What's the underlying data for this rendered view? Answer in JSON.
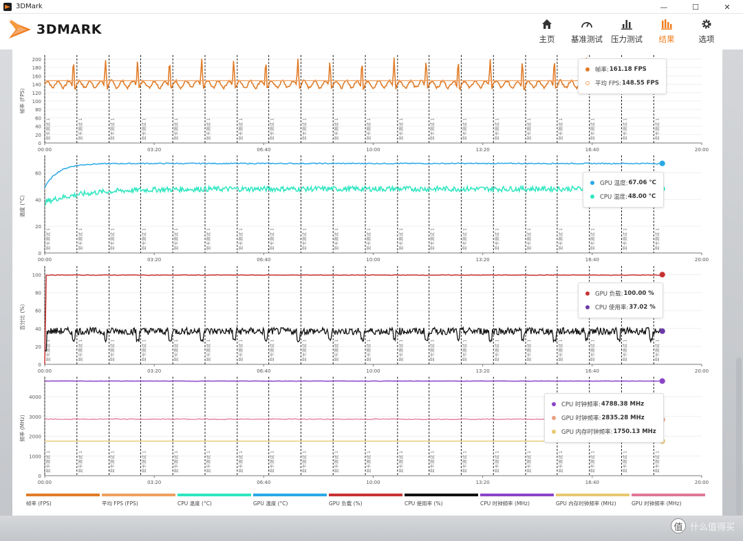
{
  "window": {
    "title": "3DMark",
    "controls": [
      "—",
      "☐",
      "✕"
    ]
  },
  "header": {
    "logo_text": "3DMARK",
    "nav": [
      {
        "label": "主页",
        "icon": "home-icon",
        "active": false
      },
      {
        "label": "基准测试",
        "icon": "gauge-icon",
        "active": false
      },
      {
        "label": "压力测试",
        "icon": "bar-chart-icon",
        "active": false
      },
      {
        "label": "结果",
        "icon": "results-icon",
        "active": true
      },
      {
        "label": "选项",
        "icon": "gear-icon",
        "active": false
      }
    ]
  },
  "colors": {
    "accent": "#f07d1e",
    "fps": "#e07b27",
    "avg_fps": "#f0a060",
    "cpu_temp": "#2ee6c0",
    "gpu_temp": "#2aa8e6",
    "gpu_load": "#c83232",
    "cpu_usage": "#111111",
    "cpu_clock": "#8a44c8",
    "gpu_mem_clock": "#e8c870",
    "gpu_clock": "#e07898"
  },
  "time_ticks": [
    "00:00",
    "03:20",
    "06:40",
    "10:00",
    "13:20",
    "16:40",
    "20:00"
  ],
  "loop_label": "显卡测试 1",
  "charts": [
    {
      "ylabel": "帧率 (FPS)",
      "yticks": [
        "0",
        "20",
        "40",
        "60",
        "80",
        "100",
        "120",
        "140",
        "160",
        "180",
        "200"
      ],
      "legend": [
        {
          "label": "帧率:",
          "value": "161.18 FPS",
          "color": "#e07b27",
          "hollow": false
        },
        {
          "label": "平均 FPS:",
          "value": "148.55 FPS",
          "color": "#f0a060",
          "hollow": true
        }
      ]
    },
    {
      "ylabel": "温度 (°C)",
      "yticks": [
        "0",
        "20",
        "40",
        "60"
      ],
      "legend": [
        {
          "label": "GPU 温度:",
          "value": "67.06 °C",
          "color": "#2aa8e6",
          "hollow": false
        },
        {
          "label": "CPU 温度:",
          "value": "48.00 °C",
          "color": "#2ee6c0",
          "hollow": false
        }
      ]
    },
    {
      "ylabel": "百分比 (%)",
      "yticks": [
        "0",
        "20",
        "40",
        "60",
        "80",
        "100"
      ],
      "legend": [
        {
          "label": "GPU 负载:",
          "value": "100.00 %",
          "color": "#c83232",
          "hollow": false
        },
        {
          "label": "CPU 使用率:",
          "value": "37.02 %",
          "color": "#6a3aa8",
          "hollow": false
        }
      ]
    },
    {
      "ylabel": "频率 (MHz)",
      "yticks": [
        "0",
        "1000",
        "2000",
        "3000",
        "4000"
      ],
      "legend": [
        {
          "label": "CPU 时钟频率:",
          "value": "4788.38 MHz",
          "color": "#8a44c8",
          "hollow": false
        },
        {
          "label": "GPU 时钟频率:",
          "value": "2835.28 MHz",
          "color": "#e8a080",
          "hollow": false
        },
        {
          "label": "GPU 内存时钟频率:",
          "value": "1750.13 MHz",
          "color": "#e8c870",
          "hollow": false
        }
      ]
    }
  ],
  "bottom_legend": [
    {
      "label": "帧率 (FPS)",
      "color": "#e07b27"
    },
    {
      "label": "平均 FPS (FPS)",
      "color": "#f0a060"
    },
    {
      "label": "CPU 温度 (°C)",
      "color": "#2ee6c0"
    },
    {
      "label": "GPU 温度 (°C)",
      "color": "#2aa8e6"
    },
    {
      "label": "GPU 负载 (%)",
      "color": "#c83232"
    },
    {
      "label": "CPU 使用率 (%)",
      "color": "#111111"
    },
    {
      "label": "CPU 时钟频率 (MHz)",
      "color": "#8a44c8"
    },
    {
      "label": "GPU 内存时钟频率 (MHz)",
      "color": "#e8c870"
    },
    {
      "label": "GPU 时钟频率 (MHz)",
      "color": "#e07898"
    }
  ],
  "watermark": {
    "icon_text": "值",
    "text": "什么值得买"
  }
}
